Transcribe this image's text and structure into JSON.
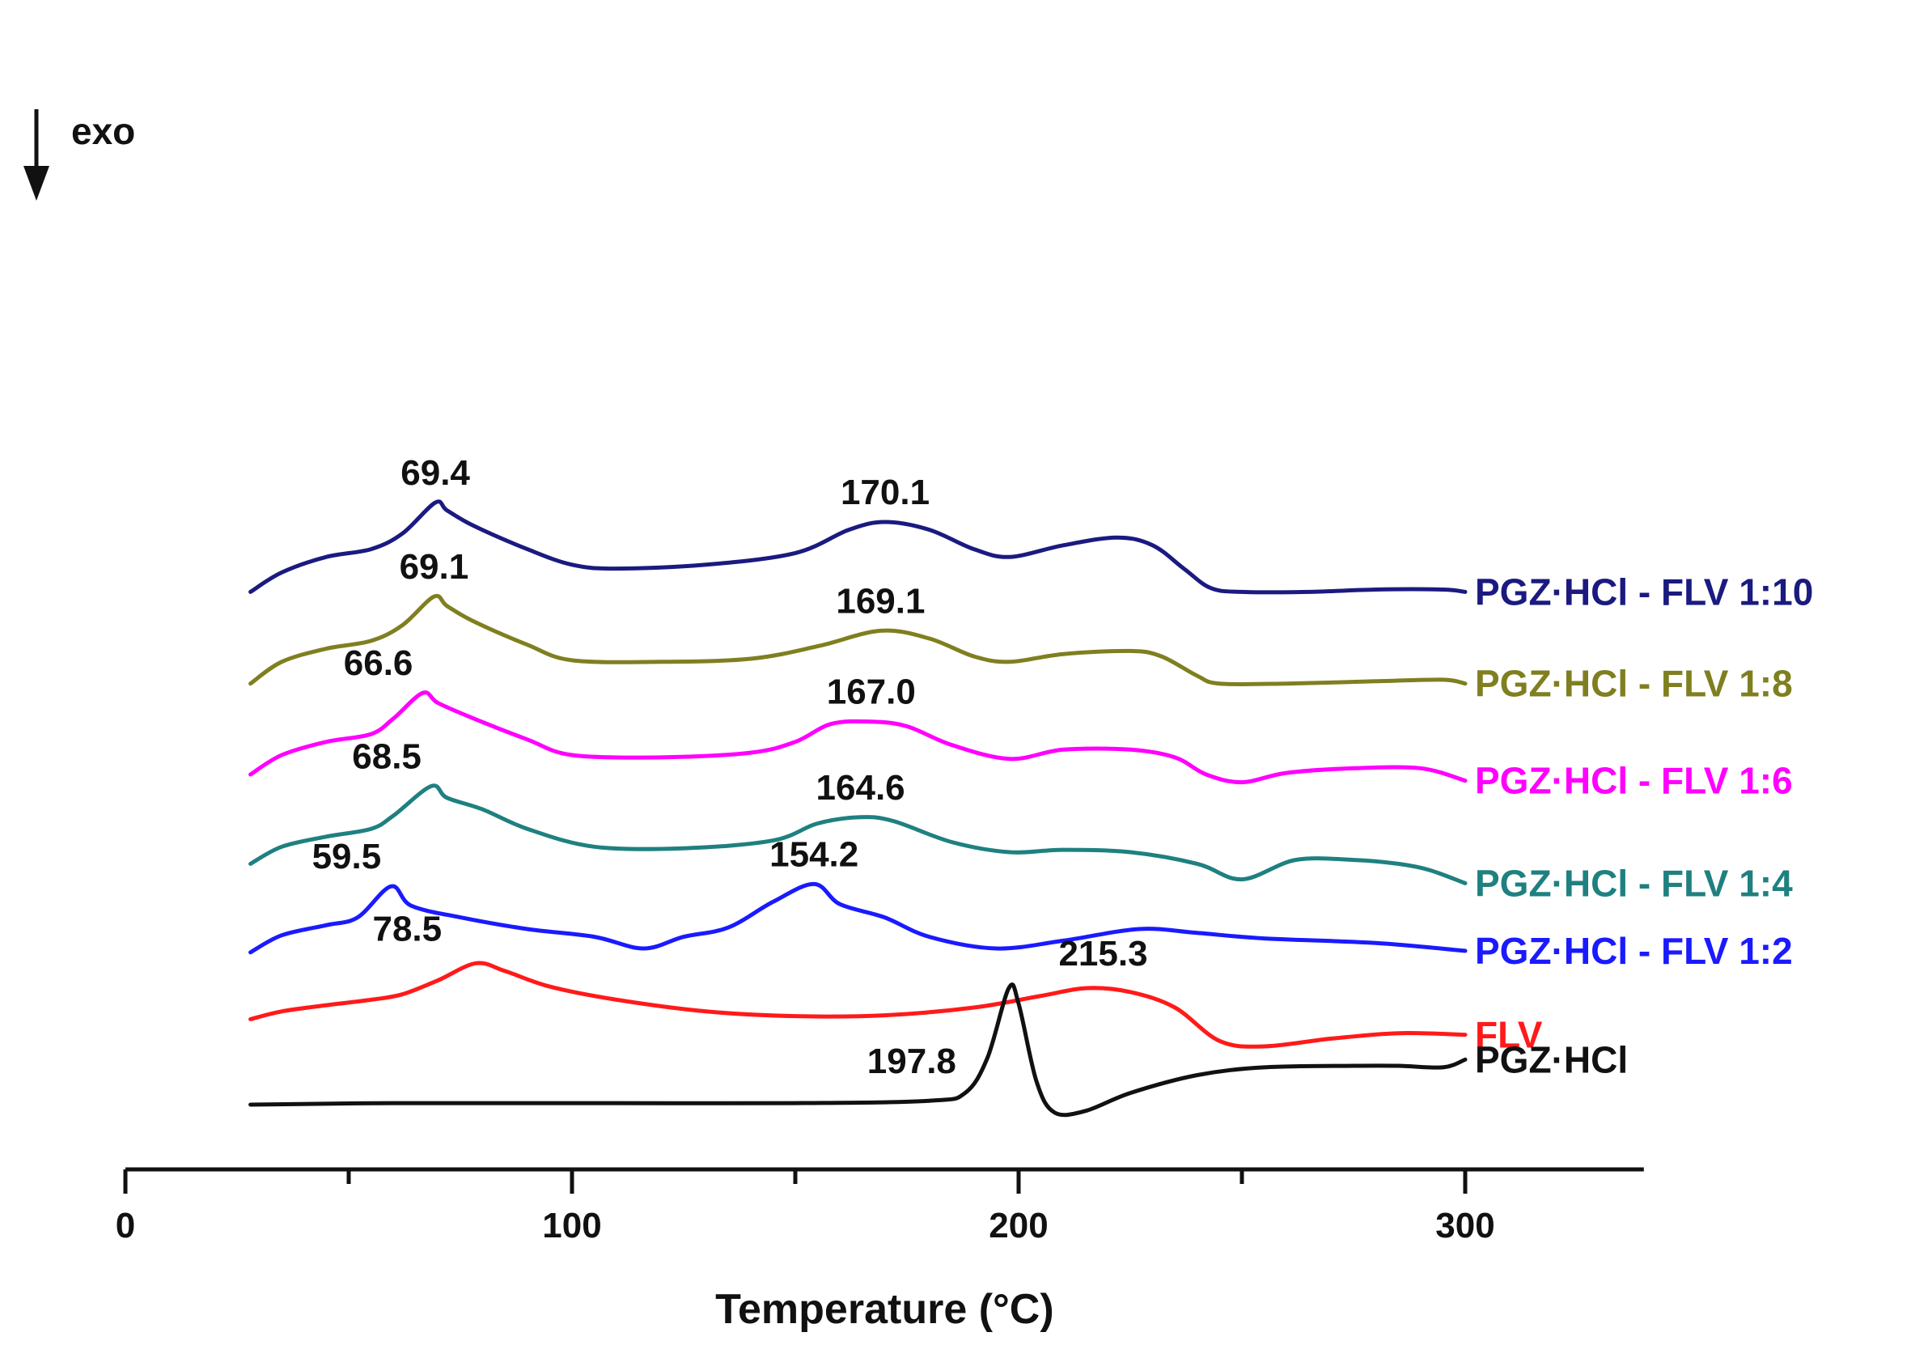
{
  "chart_data": {
    "type": "line",
    "title": "",
    "xlabel": "Temperature (°C)",
    "ylabel": "",
    "xlim": [
      0,
      340
    ],
    "x_ticks": [
      "0",
      "100",
      "200",
      "300"
    ],
    "x_tick_values": [
      0,
      100,
      200,
      300
    ],
    "exo_label": "exo",
    "exo_direction": "down",
    "series": [
      {
        "name": "PGZ·HCl - FLV 1:10",
        "color": "#1a1a80",
        "offset": 6.6,
        "peak_labels": [
          {
            "x": 69.4,
            "text": "69.4"
          },
          {
            "x": 170.1,
            "text": "170.1"
          }
        ],
        "points": [
          [
            28,
            0.0
          ],
          [
            35,
            0.25
          ],
          [
            45,
            0.45
          ],
          [
            55,
            0.55
          ],
          [
            62,
            0.75
          ],
          [
            69.4,
            1.15
          ],
          [
            72,
            1.05
          ],
          [
            78,
            0.85
          ],
          [
            90,
            0.55
          ],
          [
            100,
            0.35
          ],
          [
            110,
            0.3
          ],
          [
            130,
            0.35
          ],
          [
            150,
            0.5
          ],
          [
            162,
            0.8
          ],
          [
            170.1,
            0.9
          ],
          [
            180,
            0.8
          ],
          [
            190,
            0.55
          ],
          [
            198,
            0.45
          ],
          [
            210,
            0.6
          ],
          [
            222,
            0.7
          ],
          [
            230,
            0.6
          ],
          [
            237,
            0.3
          ],
          [
            243,
            0.05
          ],
          [
            250,
            0.0
          ],
          [
            265,
            0.0
          ],
          [
            280,
            0.03
          ],
          [
            295,
            0.03
          ],
          [
            300,
            0.0
          ]
        ]
      },
      {
        "name": "PGZ·HCl - FLV 1:8",
        "color": "#7f7f20",
        "offset": 5.42,
        "peak_labels": [
          {
            "x": 69.1,
            "text": "69.1"
          },
          {
            "x": 169.1,
            "text": "169.1"
          }
        ],
        "points": [
          [
            28,
            0.0
          ],
          [
            35,
            0.28
          ],
          [
            45,
            0.45
          ],
          [
            55,
            0.55
          ],
          [
            62,
            0.75
          ],
          [
            69.1,
            1.12
          ],
          [
            72,
            1.0
          ],
          [
            78,
            0.8
          ],
          [
            90,
            0.5
          ],
          [
            100,
            0.3
          ],
          [
            120,
            0.28
          ],
          [
            140,
            0.32
          ],
          [
            155,
            0.48
          ],
          [
            169.1,
            0.68
          ],
          [
            180,
            0.58
          ],
          [
            190,
            0.35
          ],
          [
            198,
            0.28
          ],
          [
            210,
            0.38
          ],
          [
            225,
            0.42
          ],
          [
            232,
            0.35
          ],
          [
            240,
            0.1
          ],
          [
            245,
            0.0
          ],
          [
            260,
            0.0
          ],
          [
            280,
            0.03
          ],
          [
            295,
            0.05
          ],
          [
            300,
            0.0
          ]
        ]
      },
      {
        "name": "PGZ·HCl - FLV 1:6",
        "color": "#ff00ff",
        "offset": 4.25,
        "peak_labels": [
          {
            "x": 66.6,
            "text": "66.6"
          },
          {
            "x": 167.0,
            "text": "167.0"
          }
        ],
        "points": [
          [
            28,
            0.0
          ],
          [
            35,
            0.25
          ],
          [
            45,
            0.42
          ],
          [
            55,
            0.52
          ],
          [
            60,
            0.72
          ],
          [
            66.6,
            1.05
          ],
          [
            70,
            0.92
          ],
          [
            78,
            0.72
          ],
          [
            90,
            0.45
          ],
          [
            100,
            0.25
          ],
          [
            120,
            0.22
          ],
          [
            140,
            0.28
          ],
          [
            150,
            0.42
          ],
          [
            158,
            0.65
          ],
          [
            167.0,
            0.68
          ],
          [
            175,
            0.62
          ],
          [
            185,
            0.38
          ],
          [
            198,
            0.2
          ],
          [
            210,
            0.32
          ],
          [
            225,
            0.32
          ],
          [
            235,
            0.22
          ],
          [
            242,
            0.0
          ],
          [
            250,
            -0.1
          ],
          [
            260,
            0.02
          ],
          [
            275,
            0.08
          ],
          [
            290,
            0.08
          ],
          [
            300,
            -0.08
          ]
        ]
      },
      {
        "name": "PGZ·HCl - FLV 1:4",
        "color": "#1f8080",
        "offset": 3.1,
        "peak_labels": [
          {
            "x": 68.5,
            "text": "68.5"
          },
          {
            "x": 164.6,
            "text": "164.6"
          }
        ],
        "points": [
          [
            28,
            0.0
          ],
          [
            35,
            0.22
          ],
          [
            45,
            0.35
          ],
          [
            55,
            0.45
          ],
          [
            60,
            0.62
          ],
          [
            68.5,
            1.0
          ],
          [
            72,
            0.85
          ],
          [
            80,
            0.7
          ],
          [
            90,
            0.45
          ],
          [
            105,
            0.22
          ],
          [
            125,
            0.2
          ],
          [
            145,
            0.3
          ],
          [
            155,
            0.52
          ],
          [
            164.6,
            0.6
          ],
          [
            172,
            0.55
          ],
          [
            185,
            0.28
          ],
          [
            198,
            0.15
          ],
          [
            210,
            0.18
          ],
          [
            225,
            0.15
          ],
          [
            240,
            0.0
          ],
          [
            250,
            -0.2
          ],
          [
            262,
            0.05
          ],
          [
            275,
            0.05
          ],
          [
            285,
            0.0
          ],
          [
            292,
            -0.08
          ],
          [
            300,
            -0.25
          ]
        ]
      },
      {
        "name": "PGZ·HCl - FLV 1:2",
        "color": "#1a1aff",
        "offset": 1.96,
        "peak_labels": [
          {
            "x": 59.5,
            "text": "59.5"
          },
          {
            "x": 154.2,
            "text": "154.2"
          }
        ],
        "points": [
          [
            28,
            0.0
          ],
          [
            35,
            0.22
          ],
          [
            45,
            0.35
          ],
          [
            52,
            0.45
          ],
          [
            59.5,
            0.85
          ],
          [
            64,
            0.6
          ],
          [
            75,
            0.45
          ],
          [
            90,
            0.3
          ],
          [
            105,
            0.2
          ],
          [
            116,
            0.05
          ],
          [
            125,
            0.2
          ],
          [
            135,
            0.32
          ],
          [
            145,
            0.65
          ],
          [
            154.2,
            0.88
          ],
          [
            160,
            0.62
          ],
          [
            170,
            0.45
          ],
          [
            180,
            0.2
          ],
          [
            195,
            0.05
          ],
          [
            210,
            0.15
          ],
          [
            227,
            0.3
          ],
          [
            240,
            0.25
          ],
          [
            255,
            0.18
          ],
          [
            280,
            0.12
          ],
          [
            300,
            0.02
          ]
        ]
      },
      {
        "name": "FLV",
        "color": "#ff1a1a",
        "offset": 1.1,
        "peak_labels": [
          {
            "x": 78.5,
            "text": "78.5"
          },
          {
            "x": 215.3,
            "text": "215.3"
          }
        ],
        "points": [
          [
            28,
            0.0
          ],
          [
            35,
            0.1
          ],
          [
            45,
            0.18
          ],
          [
            55,
            0.25
          ],
          [
            62,
            0.32
          ],
          [
            70,
            0.5
          ],
          [
            78.5,
            0.72
          ],
          [
            85,
            0.62
          ],
          [
            95,
            0.42
          ],
          [
            110,
            0.25
          ],
          [
            130,
            0.1
          ],
          [
            150,
            0.04
          ],
          [
            170,
            0.05
          ],
          [
            190,
            0.15
          ],
          [
            205,
            0.3
          ],
          [
            215.3,
            0.4
          ],
          [
            225,
            0.35
          ],
          [
            235,
            0.15
          ],
          [
            245,
            -0.28
          ],
          [
            255,
            -0.35
          ],
          [
            270,
            -0.25
          ],
          [
            285,
            -0.18
          ],
          [
            300,
            -0.2
          ]
        ]
      },
      {
        "name": "PGZ·HCl",
        "color": "#111111",
        "offset": 0.0,
        "peak_labels": [
          {
            "x": 197.8,
            "text": "197.8",
            "pos": "left"
          }
        ],
        "points": [
          [
            28,
            0.0
          ],
          [
            60,
            0.02
          ],
          [
            100,
            0.02
          ],
          [
            150,
            0.02
          ],
          [
            180,
            0.05
          ],
          [
            188,
            0.15
          ],
          [
            193,
            0.6
          ],
          [
            197.8,
            1.5
          ],
          [
            200,
            1.3
          ],
          [
            204,
            0.3
          ],
          [
            208,
            -0.1
          ],
          [
            215,
            -0.08
          ],
          [
            225,
            0.15
          ],
          [
            240,
            0.38
          ],
          [
            255,
            0.48
          ],
          [
            275,
            0.5
          ],
          [
            285,
            0.5
          ],
          [
            295,
            0.48
          ],
          [
            300,
            0.58
          ]
        ]
      }
    ]
  }
}
